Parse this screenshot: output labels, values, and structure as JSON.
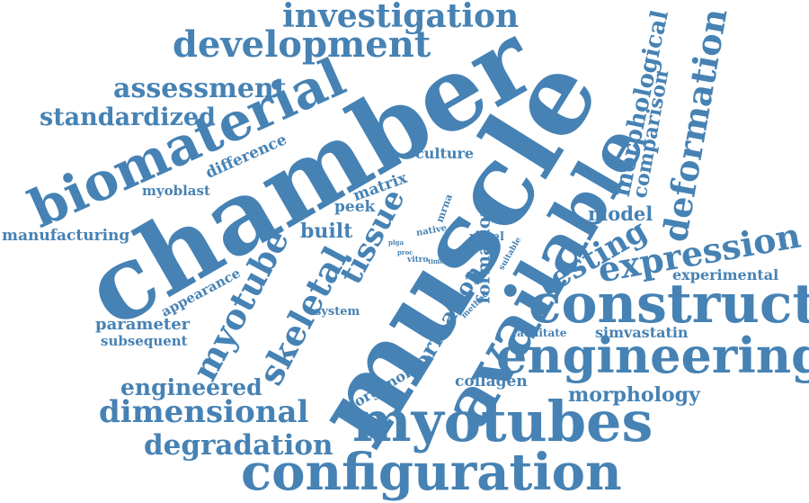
{
  "style": {
    "word_color": "#4682b4",
    "background": "#ffffff"
  },
  "words": {
    "chamber": "chamber",
    "muscle": "muscle",
    "biomaterial": "biomaterial",
    "available": "available",
    "construct": "construct",
    "engineering": "engineering",
    "myotubes": "myotubes",
    "configuration": "configuration",
    "development": "development",
    "investigation": "investigation",
    "assessment": "assessment",
    "standardized": "standardized",
    "difference": "difference",
    "myoblast": "myoblast",
    "manufacturing": "manufacturing",
    "appearance": "appearance",
    "parameter": "parameter",
    "subsequent": "subsequent",
    "myotube": "myotube",
    "skeletal": "skeletal",
    "tissue": "tissue",
    "built": "built",
    "peek": "peek",
    "matrix": "matrix",
    "culture": "culture",
    "system": "system",
    "engineered": "engineered",
    "dimensional": "dimensional",
    "degradation": "degradation",
    "organoid": "organoid",
    "formation_a": "formation",
    "formation_b": "formation",
    "collagen": "collagen",
    "morphology": "morphology",
    "facilitate": "facilitate",
    "simvastatin": "simvastatin",
    "experimental": "experimental",
    "expression": "expression",
    "testing": "testing",
    "model": "model",
    "deformation": "deformation",
    "comparison": "comparison",
    "morphological": "morphological",
    "novel": "novel",
    "native": "native",
    "mrna": "mrna",
    "plga": "plga",
    "proc": "proc",
    "vitro": "vitro",
    "time": "time",
    "vit": "vit",
    "suitable": "suitable",
    "method": "method"
  }
}
